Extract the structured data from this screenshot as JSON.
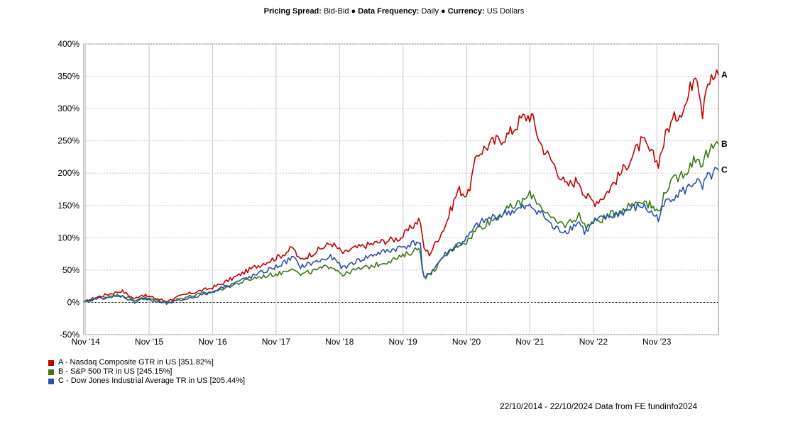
{
  "header": {
    "spread_label": "Pricing Spread:",
    "spread_value": "Bid-Bid",
    "sep1": "●",
    "freq_label": "Data Frequency:",
    "freq_value": "Daily",
    "sep2": "●",
    "currency_label": "Currency:",
    "currency_value": "US Dollars"
  },
  "footer": {
    "text": "22/10/2014 - 22/10/2024 Data from FE fundinfo2024"
  },
  "colors": {
    "A": "#c00000",
    "B": "#3a7a14",
    "C": "#2a50b0",
    "grid": "#c8c8c8"
  },
  "chart_data": {
    "type": "line",
    "title": "",
    "xlabel": "",
    "ylabel": "",
    "ylim": [
      -50,
      400
    ],
    "xlim": [
      2014.8,
      2024.8
    ],
    "y_ticks": [
      -50,
      0,
      50,
      100,
      150,
      200,
      250,
      300,
      350,
      400
    ],
    "y_tick_labels": [
      "-50%",
      "0%",
      "50%",
      "100%",
      "150%",
      "200%",
      "250%",
      "300%",
      "350%",
      "400%"
    ],
    "x_ticks": [
      2014.83,
      2015.83,
      2016.83,
      2017.83,
      2018.83,
      2019.83,
      2020.83,
      2021.83,
      2022.83,
      2023.83
    ],
    "x_tick_labels": [
      "Nov '14",
      "Nov '15",
      "Nov '16",
      "Nov '17",
      "Nov '18",
      "Nov '19",
      "Nov '20",
      "Nov '21",
      "Nov '22",
      "Nov '23"
    ],
    "grid": true,
    "legend_position": "bottom-left",
    "series": [
      {
        "key": "A",
        "end_label": "A",
        "name": "A - Nasdaq Composite GTR in US [351.82%]",
        "x": [
          2014.8,
          2015.0,
          2015.4,
          2015.6,
          2015.7,
          2016.1,
          2016.4,
          2016.8,
          2017.0,
          2017.5,
          2017.9,
          2018.1,
          2018.2,
          2018.7,
          2018.9,
          2019.0,
          2019.4,
          2019.8,
          2020.1,
          2020.15,
          2020.25,
          2020.5,
          2020.7,
          2020.85,
          2021.0,
          2021.2,
          2021.5,
          2021.7,
          2021.85,
          2022.0,
          2022.2,
          2022.4,
          2022.6,
          2022.7,
          2022.85,
          2023.0,
          2023.3,
          2023.6,
          2023.85,
          2024.0,
          2024.3,
          2024.45,
          2024.55,
          2024.6,
          2024.8
        ],
        "values": [
          0,
          8,
          18,
          5,
          12,
          2,
          12,
          22,
          30,
          55,
          72,
          85,
          65,
          92,
          75,
          82,
          92,
          100,
          130,
          85,
          75,
          120,
          175,
          165,
          230,
          245,
          260,
          285,
          290,
          245,
          215,
          180,
          190,
          165,
          155,
          165,
          205,
          250,
          215,
          270,
          310,
          365,
          295,
          340,
          352
        ]
      },
      {
        "key": "B",
        "end_label": "B",
        "name": "B - S&P 500 TR in US [245.15%]",
        "x": [
          2014.8,
          2015.0,
          2015.4,
          2015.6,
          2015.7,
          2016.1,
          2016.4,
          2016.8,
          2017.0,
          2017.5,
          2017.9,
          2018.1,
          2018.2,
          2018.7,
          2018.9,
          2019.0,
          2019.4,
          2019.8,
          2020.1,
          2020.15,
          2020.25,
          2020.5,
          2020.7,
          2020.85,
          2021.0,
          2021.2,
          2021.5,
          2021.7,
          2021.85,
          2022.0,
          2022.2,
          2022.4,
          2022.6,
          2022.7,
          2022.85,
          2023.0,
          2023.3,
          2023.6,
          2023.85,
          2024.0,
          2024.3,
          2024.45,
          2024.55,
          2024.6,
          2024.8
        ],
        "values": [
          0,
          6,
          12,
          2,
          8,
          0,
          8,
          16,
          22,
          38,
          45,
          55,
          42,
          57,
          42,
          48,
          58,
          70,
          85,
          38,
          42,
          72,
          90,
          95,
          115,
          125,
          145,
          155,
          168,
          150,
          125,
          120,
          135,
          118,
          125,
          130,
          145,
          160,
          140,
          180,
          205,
          225,
          215,
          228,
          245
        ]
      },
      {
        "key": "C",
        "end_label": "C",
        "name": "C - Dow Jones Industrial Average TR in US [205.44%]",
        "x": [
          2014.8,
          2015.0,
          2015.4,
          2015.6,
          2015.7,
          2016.1,
          2016.4,
          2016.8,
          2017.0,
          2017.5,
          2017.9,
          2018.1,
          2018.2,
          2018.7,
          2018.9,
          2019.0,
          2019.4,
          2019.8,
          2020.1,
          2020.15,
          2020.25,
          2020.5,
          2020.7,
          2020.85,
          2021.0,
          2021.2,
          2021.5,
          2021.7,
          2021.85,
          2022.0,
          2022.2,
          2022.4,
          2022.6,
          2022.7,
          2022.85,
          2023.0,
          2023.3,
          2023.6,
          2023.85,
          2024.0,
          2024.3,
          2024.45,
          2024.55,
          2024.6,
          2024.8
        ],
        "values": [
          0,
          6,
          10,
          0,
          6,
          -2,
          5,
          15,
          24,
          42,
          58,
          70,
          55,
          70,
          52,
          60,
          75,
          85,
          95,
          35,
          45,
          75,
          90,
          100,
          120,
          130,
          140,
          145,
          148,
          140,
          115,
          110,
          125,
          108,
          125,
          130,
          140,
          150,
          130,
          160,
          175,
          190,
          175,
          190,
          205
        ]
      }
    ]
  },
  "legend": {
    "A": "A - Nasdaq Composite GTR in US [351.82%]",
    "B": "B - S&P 500 TR in US [245.15%]",
    "C": "C - Dow Jones Industrial Average TR in US [205.44%]"
  }
}
